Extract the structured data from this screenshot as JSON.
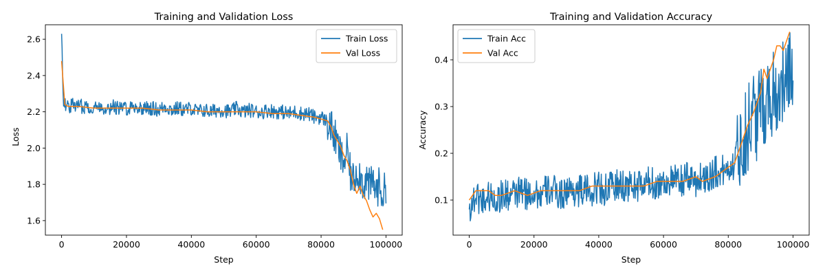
{
  "colors": {
    "train": "#1f77b4",
    "val": "#ff7f0e",
    "axis": "#000000",
    "background": "#ffffff",
    "legend_border": "#cccccc"
  },
  "chart_data": [
    {
      "type": "line",
      "title": "Training and Validation Loss",
      "xlabel": "Step",
      "ylabel": "Loss",
      "xlim": [
        -5000,
        105000
      ],
      "ylim": [
        1.52,
        2.68
      ],
      "xticks": [
        0,
        20000,
        40000,
        60000,
        80000,
        100000
      ],
      "xtick_labels": [
        "0",
        "20000",
        "40000",
        "60000",
        "80000",
        "100000"
      ],
      "yticks": [
        1.6,
        1.8,
        2.0,
        2.2,
        2.4,
        2.6
      ],
      "ytick_labels": [
        "1.6",
        "1.8",
        "2.0",
        "2.2",
        "2.4",
        "2.6"
      ],
      "grid": false,
      "legend": {
        "position": "top-right",
        "entries": [
          "Train Loss",
          "Val Loss"
        ]
      },
      "series": [
        {
          "name": "Train Loss",
          "color": "#1f77b4",
          "x": [
            0,
            500,
            1000,
            2000,
            4000,
            6000,
            8000,
            10000,
            12000,
            14000,
            16000,
            18000,
            20000,
            22000,
            24000,
            26000,
            28000,
            30000,
            32000,
            34000,
            36000,
            38000,
            40000,
            42000,
            44000,
            46000,
            48000,
            50000,
            52000,
            54000,
            56000,
            58000,
            60000,
            62000,
            64000,
            66000,
            68000,
            70000,
            72000,
            74000,
            76000,
            78000,
            80000,
            81000,
            82000,
            83000,
            84000,
            85000,
            86000,
            87000,
            88000,
            89000,
            90000,
            91000,
            92000,
            93000,
            94000,
            95000,
            96000,
            97000,
            98000,
            99000,
            100000
          ],
          "values": [
            2.63,
            2.28,
            2.24,
            2.23,
            2.24,
            2.23,
            2.23,
            2.22,
            2.23,
            2.22,
            2.23,
            2.22,
            2.22,
            2.23,
            2.22,
            2.22,
            2.22,
            2.21,
            2.23,
            2.21,
            2.22,
            2.21,
            2.22,
            2.2,
            2.21,
            2.2,
            2.21,
            2.21,
            2.2,
            2.22,
            2.2,
            2.21,
            2.2,
            2.2,
            2.21,
            2.2,
            2.2,
            2.19,
            2.2,
            2.19,
            2.19,
            2.17,
            2.17,
            2.16,
            2.14,
            2.12,
            2.07,
            2.02,
            1.96,
            1.92,
            1.98,
            1.86,
            1.82,
            1.88,
            1.85,
            1.8,
            1.83,
            1.78,
            1.82,
            1.76,
            1.8,
            1.74,
            1.78
          ],
          "noise_amplitude_approx": 0.04
        },
        {
          "name": "Val Loss",
          "color": "#ff7f0e",
          "x": [
            0,
            1000,
            2000,
            5000,
            10000,
            15000,
            20000,
            25000,
            30000,
            35000,
            40000,
            45000,
            50000,
            55000,
            60000,
            65000,
            70000,
            74000,
            78000,
            80000,
            82000,
            83000,
            84000,
            85000,
            86000,
            87000,
            88000,
            89000,
            90000,
            91000,
            92000,
            93000,
            94000,
            95000,
            96000,
            97000,
            98000,
            99000
          ],
          "values": [
            2.48,
            2.24,
            2.23,
            2.23,
            2.22,
            2.22,
            2.22,
            2.22,
            2.21,
            2.21,
            2.21,
            2.2,
            2.2,
            2.2,
            2.2,
            2.19,
            2.19,
            2.18,
            2.17,
            2.16,
            2.15,
            2.12,
            2.07,
            2.04,
            2.01,
            1.96,
            1.93,
            1.88,
            1.8,
            1.75,
            1.79,
            1.74,
            1.71,
            1.66,
            1.62,
            1.64,
            1.61,
            1.55
          ]
        }
      ]
    },
    {
      "type": "line",
      "title": "Training and Validation Accuracy",
      "xlabel": "Step",
      "ylabel": "Accuracy",
      "xlim": [
        -5000,
        105000
      ],
      "ylim": [
        0.025,
        0.475
      ],
      "xticks": [
        0,
        20000,
        40000,
        60000,
        80000,
        100000
      ],
      "xtick_labels": [
        "0",
        "20000",
        "40000",
        "60000",
        "80000",
        "100000"
      ],
      "yticks": [
        0.1,
        0.2,
        0.3,
        0.4
      ],
      "ytick_labels": [
        "0.1",
        "0.2",
        "0.3",
        "0.4"
      ],
      "grid": false,
      "legend": {
        "position": "top-left",
        "entries": [
          "Train Acc",
          "Val Acc"
        ]
      },
      "series": [
        {
          "name": "Train Acc",
          "color": "#1f77b4",
          "x": [
            0,
            2000,
            4000,
            6000,
            8000,
            10000,
            12000,
            14000,
            16000,
            18000,
            20000,
            22000,
            24000,
            26000,
            28000,
            30000,
            32000,
            34000,
            36000,
            38000,
            40000,
            42000,
            44000,
            46000,
            48000,
            50000,
            52000,
            54000,
            56000,
            58000,
            60000,
            62000,
            64000,
            66000,
            68000,
            70000,
            72000,
            74000,
            76000,
            78000,
            80000,
            82000,
            83000,
            84000,
            85000,
            86000,
            87000,
            88000,
            89000,
            90000,
            91000,
            92000,
            93000,
            94000,
            95000,
            96000,
            97000,
            98000,
            99000,
            100000
          ],
          "values": [
            0.08,
            0.11,
            0.1,
            0.11,
            0.1,
            0.11,
            0.11,
            0.11,
            0.12,
            0.11,
            0.12,
            0.11,
            0.12,
            0.12,
            0.11,
            0.12,
            0.12,
            0.12,
            0.12,
            0.12,
            0.13,
            0.12,
            0.13,
            0.13,
            0.13,
            0.13,
            0.13,
            0.13,
            0.14,
            0.13,
            0.14,
            0.14,
            0.14,
            0.14,
            0.15,
            0.14,
            0.15,
            0.15,
            0.16,
            0.16,
            0.17,
            0.18,
            0.2,
            0.22,
            0.24,
            0.25,
            0.28,
            0.29,
            0.27,
            0.31,
            0.3,
            0.33,
            0.3,
            0.35,
            0.32,
            0.34,
            0.36,
            0.33,
            0.38,
            0.35
          ],
          "noise_amplitude_approx": 0.035
        },
        {
          "name": "Val Acc",
          "color": "#ff7f0e",
          "x": [
            0,
            2000,
            4000,
            6000,
            8000,
            10000,
            14000,
            18000,
            22000,
            26000,
            30000,
            34000,
            38000,
            42000,
            46000,
            50000,
            54000,
            58000,
            62000,
            66000,
            70000,
            72000,
            76000,
            78000,
            80000,
            82000,
            84000,
            86000,
            88000,
            90000,
            91000,
            92000,
            93000,
            94000,
            95000,
            96000,
            97000,
            98000,
            99000
          ],
          "values": [
            0.1,
            0.12,
            0.12,
            0.12,
            0.11,
            0.11,
            0.12,
            0.11,
            0.12,
            0.12,
            0.12,
            0.12,
            0.13,
            0.13,
            0.13,
            0.13,
            0.13,
            0.14,
            0.14,
            0.14,
            0.15,
            0.14,
            0.15,
            0.16,
            0.17,
            0.18,
            0.22,
            0.26,
            0.29,
            0.33,
            0.38,
            0.36,
            0.38,
            0.4,
            0.43,
            0.43,
            0.42,
            0.44,
            0.46
          ]
        }
      ]
    }
  ]
}
